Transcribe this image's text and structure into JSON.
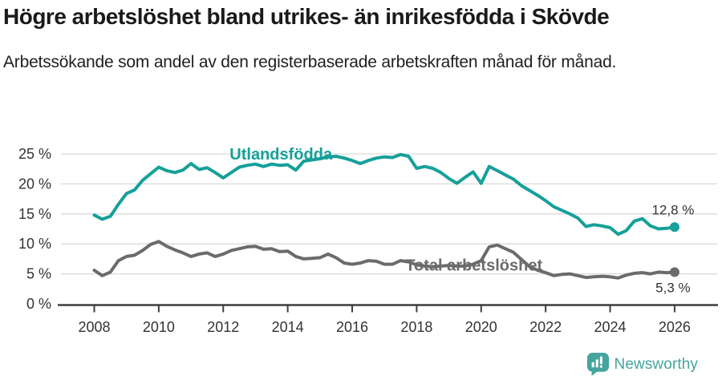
{
  "header": {
    "title": "Högre arbetslöshet bland utrikes- än inrikesfödda i Skövde",
    "subtitle": "Arbetssökande som andel av den registerbaserade arbetskraften månad för månad."
  },
  "chart_data": {
    "type": "line",
    "title": "Högre arbetslöshet bland utrikes- än inrikesfödda i Skövde",
    "subtitle": "Arbetssökande som andel av den registerbaserade arbetskraften månad för månad.",
    "x_domain": [
      2008,
      2026.3
    ],
    "y_domain": [
      0,
      26
    ],
    "grid": true,
    "legend_position": "inline-labels",
    "colors": {
      "axis": "#3d3d3d",
      "grid": "#d9d9d9",
      "tick_text": "#333333",
      "value_text": "#333333"
    },
    "x_ticks": [
      {
        "value": 2008,
        "label": "2008"
      },
      {
        "value": 2010,
        "label": "2010"
      },
      {
        "value": 2012,
        "label": "2012"
      },
      {
        "value": 2014,
        "label": "2014"
      },
      {
        "value": 2016,
        "label": "2016"
      },
      {
        "value": 2018,
        "label": "2018"
      },
      {
        "value": 2020,
        "label": "2020"
      },
      {
        "value": 2022,
        "label": "2022"
      },
      {
        "value": 2024,
        "label": "2024"
      },
      {
        "value": 2026,
        "label": "2026"
      }
    ],
    "y_ticks": [
      {
        "value": 25,
        "label": "25 %"
      },
      {
        "value": 20,
        "label": "20 %"
      },
      {
        "value": 15,
        "label": "15 %"
      },
      {
        "value": 10,
        "label": "10 %"
      },
      {
        "value": 5,
        "label": "5 %"
      },
      {
        "value": 0,
        "label": "0 %"
      }
    ],
    "series": [
      {
        "name": "Total arbetslöshet",
        "slug": "total-arbetsloshet",
        "color": "#6b6b6b",
        "x_start": 2008,
        "x_step": 0.25,
        "values": [
          5.6,
          4.7,
          5.3,
          7.2,
          7.9,
          8.1,
          8.9,
          9.9,
          10.4,
          9.6,
          9.0,
          8.5,
          7.9,
          8.3,
          8.5,
          7.9,
          8.3,
          8.9,
          9.2,
          9.5,
          9.6,
          9.1,
          9.2,
          8.7,
          8.8,
          7.9,
          7.5,
          7.6,
          7.7,
          8.3,
          7.7,
          6.8,
          6.6,
          6.8,
          7.2,
          7.1,
          6.6,
          6.6,
          7.2,
          7.0,
          6.5,
          6.3,
          6.2,
          6.3,
          6.4,
          6.3,
          6.3,
          6.6,
          7.2,
          9.5,
          9.8,
          9.2,
          8.6,
          7.4,
          6.2,
          5.6,
          5.2,
          4.7,
          4.9,
          5.0,
          4.7,
          4.4,
          4.5,
          4.6,
          4.5,
          4.3,
          4.8,
          5.1,
          5.2,
          5.0,
          5.3,
          5.2,
          5.3
        ],
        "end_value": 5.3,
        "end_label": "5,3 %",
        "end_label_side": "below",
        "label_pos": {
          "x": 2017.65,
          "y": 5.55
        }
      },
      {
        "name": "Utlandsfödda",
        "slug": "utlandsfodda",
        "color": "#16a09a",
        "x_start": 2008,
        "x_step": 0.25,
        "values": [
          14.8,
          14.1,
          14.6,
          16.6,
          18.4,
          19.0,
          20.6,
          21.7,
          22.8,
          22.2,
          21.9,
          22.3,
          23.4,
          22.4,
          22.7,
          21.9,
          21.0,
          21.9,
          22.8,
          23.1,
          23.3,
          22.9,
          23.3,
          23.1,
          23.2,
          22.3,
          23.8,
          24.0,
          24.2,
          24.5,
          24.6,
          24.3,
          23.9,
          23.4,
          23.9,
          24.3,
          24.5,
          24.4,
          24.9,
          24.6,
          22.6,
          22.9,
          22.6,
          21.9,
          20.9,
          20.1,
          21.1,
          22.0,
          20.1,
          22.9,
          22.2,
          21.5,
          20.8,
          19.7,
          18.9,
          18.1,
          17.2,
          16.2,
          15.6,
          15.0,
          14.3,
          12.9,
          13.2,
          13.0,
          12.7,
          11.6,
          12.2,
          13.8,
          14.2,
          13.0,
          12.5,
          12.6,
          12.8
        ],
        "end_value": 12.8,
        "end_label": "12,8 %",
        "end_label_side": "above",
        "label_pos": {
          "x": 2012.2,
          "y": 24.05
        }
      }
    ]
  },
  "footer": {
    "brand": "Newsworthy",
    "brand_color": "#45a49e"
  }
}
